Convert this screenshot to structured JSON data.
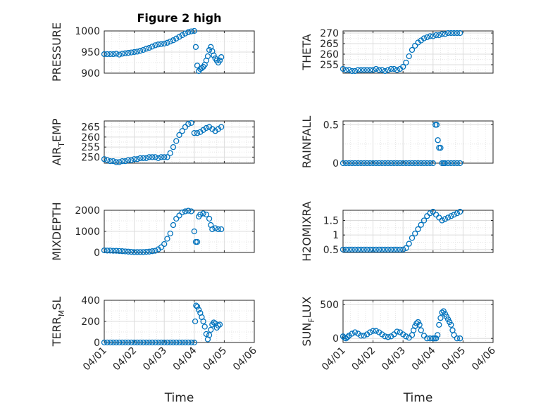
{
  "colors": {
    "marker": "#0072BD",
    "axis": "#262626",
    "grid": "#dcdcdc"
  },
  "chart_data": [
    {
      "id": "pressure",
      "type": "scatter",
      "title": "Figure 2 high",
      "ylabel": "PRESSURE",
      "ylim": [
        900,
        1000
      ],
      "yticks": [
        900,
        950,
        1000
      ],
      "xlim": [
        0,
        5
      ],
      "xticks": [
        0,
        1,
        2,
        3,
        4,
        5
      ],
      "xticklabels": [
        "04/01",
        "04/02",
        "04/03",
        "04/04",
        "04/05",
        "04/06"
      ],
      "show_xticklabels": false,
      "xlabel": "",
      "x": [
        0.0,
        0.1,
        0.2,
        0.3,
        0.4,
        0.5,
        0.6,
        0.7,
        0.8,
        0.9,
        1.0,
        1.1,
        1.2,
        1.3,
        1.4,
        1.5,
        1.6,
        1.7,
        1.8,
        1.9,
        2.0,
        2.1,
        2.2,
        2.3,
        2.4,
        2.5,
        2.6,
        2.7,
        2.8,
        2.9,
        3.0,
        3.05,
        3.1,
        3.15,
        3.2,
        3.25,
        3.3,
        3.35,
        3.4,
        3.45,
        3.5,
        3.55,
        3.6,
        3.65,
        3.7,
        3.75,
        3.8,
        3.85,
        3.9
      ],
      "y": [
        945,
        945,
        945,
        945,
        946,
        944,
        946,
        947,
        948,
        949,
        950,
        951,
        953,
        955,
        958,
        960,
        963,
        966,
        968,
        969,
        970,
        972,
        975,
        978,
        982,
        986,
        990,
        994,
        997,
        999,
        1000,
        962,
        918,
        905,
        910,
        912,
        915,
        920,
        930,
        940,
        955,
        962,
        952,
        942,
        935,
        930,
        925,
        930,
        938
      ]
    },
    {
      "id": "theta",
      "type": "scatter",
      "title": "",
      "ylabel": "THETA",
      "ylim": [
        251,
        271
      ],
      "yticks": [
        255,
        260,
        265,
        270
      ],
      "xlim": [
        0,
        5
      ],
      "xticks": [
        0,
        1,
        2,
        3,
        4,
        5
      ],
      "xticklabels": [
        "04/01",
        "04/02",
        "04/03",
        "04/04",
        "04/05",
        "04/06"
      ],
      "show_xticklabels": false,
      "xlabel": "",
      "x": [
        0.0,
        0.1,
        0.2,
        0.3,
        0.4,
        0.5,
        0.6,
        0.7,
        0.8,
        0.9,
        1.0,
        1.1,
        1.2,
        1.3,
        1.4,
        1.5,
        1.6,
        1.7,
        1.8,
        1.9,
        2.0,
        2.1,
        2.2,
        2.3,
        2.4,
        2.5,
        2.6,
        2.7,
        2.8,
        2.9,
        3.0,
        3.1,
        3.2,
        3.3,
        3.4,
        3.5,
        3.6,
        3.7,
        3.8,
        3.9
      ],
      "y": [
        253,
        252.5,
        252.5,
        252,
        252,
        252.5,
        252.5,
        252.5,
        252.5,
        252.5,
        252.5,
        253,
        252.5,
        252.5,
        252,
        252.5,
        253,
        253,
        252.5,
        253,
        254,
        256,
        259,
        262,
        264,
        265.5,
        266.5,
        267.5,
        268,
        268.5,
        268.5,
        269,
        269,
        269.5,
        269.5,
        270,
        270,
        270,
        270,
        270
      ]
    },
    {
      "id": "airtemp",
      "type": "scatter",
      "title": "",
      "ylabel": "AIR_TEMP",
      "ylim": [
        247,
        268
      ],
      "yticks": [
        250,
        255,
        260,
        265
      ],
      "xlim": [
        0,
        5
      ],
      "xticks": [
        0,
        1,
        2,
        3,
        4,
        5
      ],
      "xticklabels": [
        "04/01",
        "04/02",
        "04/03",
        "04/04",
        "04/05",
        "04/06"
      ],
      "show_xticklabels": false,
      "xlabel": "",
      "x": [
        0.0,
        0.1,
        0.2,
        0.3,
        0.4,
        0.5,
        0.6,
        0.7,
        0.8,
        0.9,
        1.0,
        1.1,
        1.2,
        1.3,
        1.4,
        1.5,
        1.6,
        1.7,
        1.8,
        1.9,
        2.0,
        2.1,
        2.2,
        2.3,
        2.4,
        2.5,
        2.6,
        2.7,
        2.8,
        2.9,
        3.0,
        3.1,
        3.2,
        3.3,
        3.4,
        3.5,
        3.6,
        3.7,
        3.8,
        3.9
      ],
      "y": [
        249,
        248.5,
        248,
        248,
        247.5,
        247.5,
        248,
        248,
        248.5,
        248.5,
        249,
        249,
        249.5,
        249.5,
        249.5,
        250,
        250,
        250,
        249.5,
        250,
        250,
        250,
        252,
        255,
        258,
        261,
        263,
        265,
        266.5,
        267,
        262,
        262,
        262.5,
        263.5,
        264.5,
        265,
        264,
        263,
        264,
        265
      ]
    },
    {
      "id": "rainfall",
      "type": "scatter",
      "title": "",
      "ylabel": "RAINFALL",
      "ylim": [
        0,
        0.55
      ],
      "yticks": [
        0,
        0.5
      ],
      "xlim": [
        0,
        5
      ],
      "xticks": [
        0,
        1,
        2,
        3,
        4,
        5
      ],
      "xticklabels": [
        "04/01",
        "04/02",
        "04/03",
        "04/04",
        "04/05",
        "04/06"
      ],
      "show_xticklabels": false,
      "xlabel": "",
      "x": [
        0.0,
        0.1,
        0.2,
        0.3,
        0.4,
        0.5,
        0.6,
        0.7,
        0.8,
        0.9,
        1.0,
        1.1,
        1.2,
        1.3,
        1.4,
        1.5,
        1.6,
        1.7,
        1.8,
        1.9,
        2.0,
        2.1,
        2.2,
        2.3,
        2.4,
        2.5,
        2.6,
        2.7,
        2.8,
        2.9,
        3.0,
        3.08,
        3.12,
        3.16,
        3.2,
        3.25,
        3.3,
        3.35,
        3.4,
        3.5,
        3.6,
        3.7,
        3.8,
        3.9
      ],
      "y": [
        0,
        0,
        0,
        0,
        0,
        0,
        0,
        0,
        0,
        0,
        0,
        0,
        0,
        0,
        0,
        0,
        0,
        0,
        0,
        0,
        0,
        0,
        0,
        0,
        0,
        0,
        0,
        0,
        0,
        0,
        0,
        0.5,
        0.5,
        0.3,
        0.2,
        0.2,
        0,
        0,
        0,
        0,
        0,
        0,
        0,
        0
      ]
    },
    {
      "id": "mixdepth",
      "type": "scatter",
      "title": "",
      "ylabel": "MIXDEPTH",
      "ylim": [
        0,
        2000
      ],
      "yticks": [
        0,
        1000,
        2000
      ],
      "xlim": [
        0,
        5
      ],
      "xticks": [
        0,
        1,
        2,
        3,
        4,
        5
      ],
      "xticklabels": [
        "04/01",
        "04/02",
        "04/03",
        "04/04",
        "04/05",
        "04/06"
      ],
      "show_xticklabels": false,
      "xlabel": "",
      "x": [
        0.0,
        0.1,
        0.2,
        0.3,
        0.4,
        0.5,
        0.6,
        0.7,
        0.8,
        0.9,
        1.0,
        1.1,
        1.2,
        1.3,
        1.4,
        1.5,
        1.6,
        1.7,
        1.8,
        1.9,
        2.0,
        2.1,
        2.2,
        2.3,
        2.4,
        2.5,
        2.6,
        2.7,
        2.8,
        2.9,
        3.0,
        3.05,
        3.1,
        3.15,
        3.2,
        3.3,
        3.4,
        3.5,
        3.55,
        3.6,
        3.7,
        3.8,
        3.9
      ],
      "y": [
        100,
        90,
        90,
        80,
        80,
        70,
        60,
        50,
        40,
        30,
        20,
        20,
        20,
        20,
        30,
        40,
        60,
        80,
        150,
        250,
        400,
        650,
        900,
        1300,
        1600,
        1750,
        1900,
        1950,
        1980,
        1950,
        1000,
        500,
        500,
        1700,
        1800,
        1850,
        1800,
        1600,
        1300,
        1100,
        1150,
        1100,
        1100
      ]
    },
    {
      "id": "h2omixra",
      "type": "scatter",
      "title": "",
      "ylabel": "H2OMIXRA",
      "ylim": [
        0.4,
        1.85
      ],
      "yticks": [
        0.5,
        1,
        1.5
      ],
      "xlim": [
        0,
        5
      ],
      "xticks": [
        0,
        1,
        2,
        3,
        4,
        5
      ],
      "xticklabels": [
        "04/01",
        "04/02",
        "04/03",
        "04/04",
        "04/05",
        "04/06"
      ],
      "show_xticklabels": false,
      "xlabel": "",
      "x": [
        0.0,
        0.1,
        0.2,
        0.3,
        0.4,
        0.5,
        0.6,
        0.7,
        0.8,
        0.9,
        1.0,
        1.1,
        1.2,
        1.3,
        1.4,
        1.5,
        1.6,
        1.7,
        1.8,
        1.9,
        2.0,
        2.1,
        2.2,
        2.3,
        2.4,
        2.5,
        2.6,
        2.7,
        2.8,
        2.9,
        3.0,
        3.1,
        3.2,
        3.3,
        3.4,
        3.5,
        3.6,
        3.7,
        3.8,
        3.9
      ],
      "y": [
        0.5,
        0.5,
        0.5,
        0.5,
        0.5,
        0.5,
        0.5,
        0.5,
        0.5,
        0.5,
        0.5,
        0.5,
        0.5,
        0.5,
        0.5,
        0.5,
        0.5,
        0.5,
        0.5,
        0.5,
        0.5,
        0.55,
        0.7,
        0.9,
        1.05,
        1.2,
        1.35,
        1.5,
        1.65,
        1.75,
        1.8,
        1.7,
        1.6,
        1.5,
        1.55,
        1.6,
        1.65,
        1.7,
        1.75,
        1.8
      ]
    },
    {
      "id": "terrmsl",
      "type": "scatter",
      "title": "",
      "ylabel": "TERR_MSL",
      "ylim": [
        0,
        400
      ],
      "yticks": [
        0,
        200,
        400
      ],
      "xlim": [
        0,
        5
      ],
      "xticks": [
        0,
        1,
        2,
        3,
        4,
        5
      ],
      "xticklabels": [
        "04/01",
        "04/02",
        "04/03",
        "04/04",
        "04/05",
        "04/06"
      ],
      "show_xticklabels": true,
      "xlabel": "Time",
      "x": [
        0.0,
        0.1,
        0.2,
        0.3,
        0.4,
        0.5,
        0.6,
        0.7,
        0.8,
        0.9,
        1.0,
        1.1,
        1.2,
        1.3,
        1.4,
        1.5,
        1.6,
        1.7,
        1.8,
        1.9,
        2.0,
        2.1,
        2.2,
        2.3,
        2.4,
        2.5,
        2.6,
        2.7,
        2.8,
        2.9,
        3.0,
        3.03,
        3.06,
        3.1,
        3.15,
        3.2,
        3.25,
        3.3,
        3.35,
        3.4,
        3.45,
        3.5,
        3.55,
        3.6,
        3.65,
        3.7,
        3.75,
        3.8,
        3.85
      ],
      "y": [
        0,
        0,
        0,
        0,
        0,
        0,
        0,
        0,
        0,
        0,
        0,
        0,
        0,
        0,
        0,
        0,
        0,
        0,
        0,
        0,
        0,
        0,
        0,
        0,
        0,
        0,
        0,
        0,
        0,
        0,
        0,
        200,
        350,
        340,
        310,
        280,
        240,
        200,
        150,
        80,
        30,
        70,
        120,
        170,
        190,
        180,
        140,
        160,
        170
      ]
    },
    {
      "id": "sunflux",
      "type": "scatter",
      "title": "",
      "ylabel": "SUN_FLUX",
      "ylim": [
        -60,
        560
      ],
      "yticks": [
        0,
        500
      ],
      "xlim": [
        0,
        5
      ],
      "xticks": [
        0,
        1,
        2,
        3,
        4,
        5
      ],
      "xticklabels": [
        "04/01",
        "04/02",
        "04/03",
        "04/04",
        "04/05",
        "04/06"
      ],
      "show_xticklabels": true,
      "xlabel": "Time",
      "x": [
        0.0,
        0.05,
        0.1,
        0.15,
        0.2,
        0.3,
        0.4,
        0.5,
        0.6,
        0.7,
        0.8,
        0.9,
        1.0,
        1.1,
        1.2,
        1.3,
        1.4,
        1.5,
        1.6,
        1.7,
        1.8,
        1.9,
        2.0,
        2.1,
        2.2,
        2.3,
        2.35,
        2.4,
        2.45,
        2.5,
        2.55,
        2.6,
        2.7,
        2.8,
        2.9,
        3.0,
        3.05,
        3.1,
        3.15,
        3.2,
        3.25,
        3.3,
        3.35,
        3.4,
        3.45,
        3.5,
        3.55,
        3.6,
        3.65,
        3.7,
        3.8,
        3.9
      ],
      "y": [
        30,
        10,
        0,
        20,
        40,
        70,
        90,
        70,
        40,
        40,
        60,
        90,
        110,
        110,
        90,
        60,
        30,
        20,
        30,
        60,
        100,
        90,
        60,
        30,
        10,
        50,
        120,
        180,
        220,
        240,
        200,
        120,
        40,
        0,
        0,
        0,
        0,
        0,
        50,
        200,
        300,
        380,
        400,
        360,
        320,
        280,
        240,
        200,
        120,
        50,
        0,
        0
      ]
    }
  ]
}
